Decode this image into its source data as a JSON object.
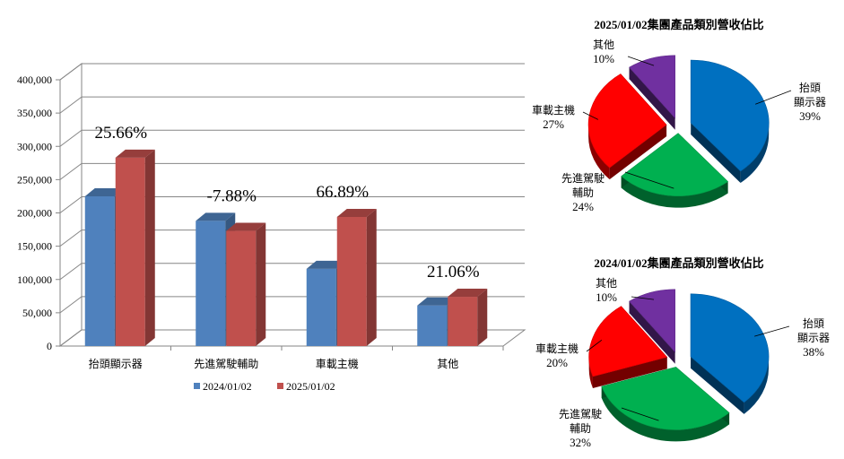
{
  "chart_data": [
    {
      "type": "bar",
      "categories": [
        "抬頭顯示器",
        "先進駕駛輔助",
        "車載主機",
        "其他"
      ],
      "series": [
        {
          "name": "2024/01/02",
          "color": "#4F81BD",
          "values": [
            225000,
            188000,
            116000,
            61000
          ]
        },
        {
          "name": "2025/01/02",
          "color": "#C0504D",
          "values": [
            283000,
            173000,
            194000,
            74000
          ]
        }
      ],
      "annotations": [
        "25.66%",
        "-7.88%",
        "66.89%",
        "21.06%"
      ],
      "ylim": [
        0,
        400000
      ],
      "yticks": [
        0,
        50000,
        100000,
        150000,
        200000,
        250000,
        300000,
        350000,
        400000
      ],
      "ytick_labels": [
        "0",
        "50,000",
        "100,000",
        "150,000",
        "200,000",
        "250,000",
        "300,000",
        "350,000",
        "400,000"
      ],
      "grid": true,
      "legend": "bottom"
    },
    {
      "type": "pie",
      "title": "2025/01/02集團產品類別營收佔比",
      "labels": [
        [
          "抬頭",
          "顯示器"
        ],
        [
          "先進駕駛",
          "輔助"
        ],
        [
          "車載主機"
        ],
        [
          "其他"
        ]
      ],
      "values": [
        39,
        24,
        27,
        10
      ],
      "value_labels": [
        "39%",
        "24%",
        "27%",
        "10%"
      ],
      "colors": [
        "#0070C0",
        "#00B050",
        "#FF0000",
        "#7030A0"
      ]
    },
    {
      "type": "pie",
      "title": "2024/01/02集團產品類別營收佔比",
      "labels": [
        [
          "抬頭",
          "顯示器"
        ],
        [
          "先進駕駛",
          "輔助"
        ],
        [
          "車載主機"
        ],
        [
          "其他"
        ]
      ],
      "values": [
        38,
        32,
        20,
        10
      ],
      "value_labels": [
        "38%",
        "32%",
        "20%",
        "10%"
      ],
      "colors": [
        "#0070C0",
        "#00B050",
        "#FF0000",
        "#7030A0"
      ]
    }
  ]
}
